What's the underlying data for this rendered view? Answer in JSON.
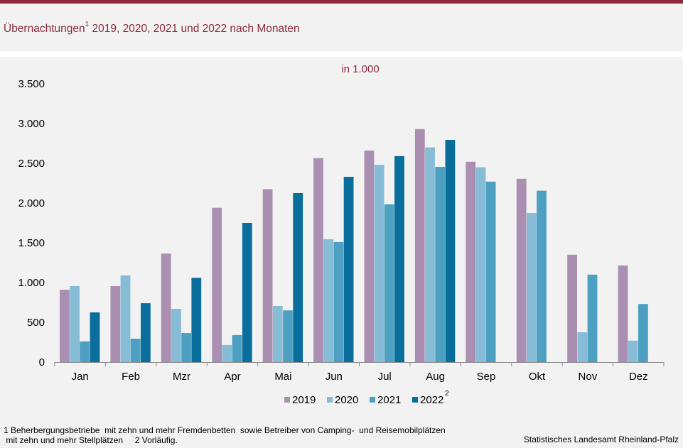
{
  "header": {
    "title_main": "Übernachtungen",
    "title_sup": "1",
    "title_rest": " 2019, 2020, 2021 und 2022 nach Monaten"
  },
  "footnote": {
    "line1": "1 Beherbergungsbetriebe  mit zehn und mehr Fremdenbetten  sowie Betreiber von Camping-  und Reisemobilplätzen",
    "line2": " mit zehn und mehr Stellplätzen     2 Vorläufig."
  },
  "source": "Statistisches Landesamt Rheinland-Pfalz",
  "chart_data": {
    "type": "bar",
    "unit_label": "in 1.000",
    "categories": [
      "Jan",
      "Feb",
      "Mzr",
      "Apr",
      "Mai",
      "Jun",
      "Jul",
      "Aug",
      "Sep",
      "Okt",
      "Nov",
      "Dez"
    ],
    "ylim": [
      0,
      3500
    ],
    "yticks": [
      0,
      500,
      1000,
      1500,
      2000,
      2500,
      3000,
      3500
    ],
    "ytick_labels": [
      "0",
      "500",
      "1.000",
      "1.500",
      "2.000",
      "2.500",
      "3.000",
      "3.500"
    ],
    "grid": false,
    "legend_position": "bottom-center",
    "series": [
      {
        "name": "2019",
        "legend_sup": "",
        "color": "#ab8fb3",
        "values": [
          910,
          955,
          1365,
          1940,
          2175,
          2565,
          2660,
          2930,
          2520,
          2305,
          1350,
          1215
        ]
      },
      {
        "name": "2020",
        "legend_sup": "",
        "color": "#86bcd6",
        "values": [
          955,
          1090,
          670,
          215,
          705,
          1545,
          2480,
          2700,
          2450,
          1875,
          375,
          270
        ]
      },
      {
        "name": "2021",
        "legend_sup": "",
        "color": "#4da0c2",
        "values": [
          260,
          295,
          365,
          340,
          650,
          1510,
          1985,
          2455,
          2270,
          2155,
          1100,
          730
        ]
      },
      {
        "name": "2022",
        "legend_sup": "2",
        "color": "#0a6e9c",
        "values": [
          625,
          740,
          1060,
          1750,
          2125,
          2330,
          2590,
          2795,
          null,
          null,
          null,
          null
        ]
      }
    ]
  }
}
